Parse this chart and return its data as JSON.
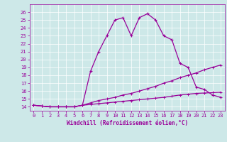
{
  "xlabel": "Windchill (Refroidissement éolien,°C)",
  "bg_color": "#cde8e8",
  "line_color": "#990099",
  "x_hours": [
    0,
    1,
    2,
    3,
    4,
    5,
    6,
    7,
    8,
    9,
    10,
    11,
    12,
    13,
    14,
    15,
    16,
    17,
    18,
    19,
    20,
    21,
    22,
    23
  ],
  "temp_curve": [
    14.2,
    14.1,
    14.0,
    14.0,
    14.0,
    14.0,
    14.2,
    18.5,
    21.0,
    23.0,
    25.0,
    25.3,
    23.0,
    25.3,
    25.8,
    25.0,
    23.0,
    22.5,
    19.5,
    19.0,
    16.5,
    16.2,
    15.5,
    15.2
  ],
  "windchill_line1": [
    14.2,
    14.1,
    14.0,
    14.0,
    14.0,
    14.0,
    14.2,
    14.5,
    14.8,
    15.0,
    15.2,
    15.5,
    15.7,
    16.0,
    16.3,
    16.6,
    17.0,
    17.3,
    17.7,
    18.0,
    18.3,
    18.7,
    19.0,
    19.3
  ],
  "windchill_line2": [
    14.2,
    14.1,
    14.0,
    14.0,
    14.0,
    14.0,
    14.2,
    14.3,
    14.4,
    14.5,
    14.6,
    14.7,
    14.8,
    14.9,
    15.0,
    15.1,
    15.2,
    15.35,
    15.5,
    15.6,
    15.7,
    15.75,
    15.8,
    15.85
  ],
  "ylim": [
    13.5,
    27
  ],
  "xlim": [
    -0.5,
    23.5
  ],
  "yticks": [
    14,
    15,
    16,
    17,
    18,
    19,
    20,
    21,
    22,
    23,
    24,
    25,
    26
  ],
  "xticks": [
    0,
    1,
    2,
    3,
    4,
    5,
    6,
    7,
    8,
    9,
    10,
    11,
    12,
    13,
    14,
    15,
    16,
    17,
    18,
    19,
    20,
    21,
    22,
    23
  ],
  "tick_fontsize": 5,
  "xlabel_fontsize": 5.5
}
